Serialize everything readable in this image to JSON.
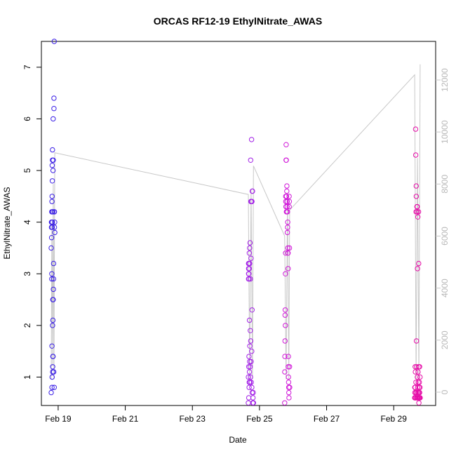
{
  "chart_data": {
    "type": "scatter",
    "title": "ORCAS RF12-19 EthylNitrate_AWAS",
    "xlabel": "Date",
    "ylabel": "EthylNitrate_AWAS",
    "xlim": [
      "2016-02-18 12:00",
      "2016-03-01 06:00"
    ],
    "ylim": [
      0.45,
      7.5
    ],
    "y2lim": [
      0,
      12600
    ],
    "x_ticks": [
      {
        "date": "2016-02-19",
        "label": "Feb 19"
      },
      {
        "date": "2016-02-21",
        "label": "Feb 21"
      },
      {
        "date": "2016-02-23",
        "label": "Feb 23"
      },
      {
        "date": "2016-02-25",
        "label": "Feb 25"
      },
      {
        "date": "2016-02-27",
        "label": "Feb 27"
      },
      {
        "date": "2016-02-29",
        "label": "Feb 29"
      }
    ],
    "y_ticks": [
      1,
      2,
      3,
      4,
      5,
      6,
      7
    ],
    "y2_ticks": [
      0,
      2000,
      4000,
      6000,
      8000,
      10000,
      12000
    ],
    "colors": {
      "flight_1": "#3a1fe6",
      "flight_2": "#a220e6",
      "flight_3": "#d018d8",
      "flight_4": "#e60ea8",
      "altitude_line": "#c8c8c8"
    },
    "series": [
      {
        "color_key": "flight_1",
        "x": [
          "2016-02-18 19:00",
          "2016-02-18 19:00",
          "2016-02-18 19:15",
          "2016-02-18 19:15",
          "2016-02-18 19:20",
          "2016-02-18 19:25",
          "2016-02-18 19:25",
          "2016-02-18 19:30",
          "2016-02-18 19:30",
          "2016-02-18 19:35",
          "2016-02-18 19:35",
          "2016-02-18 19:35",
          "2016-02-18 19:40",
          "2016-02-18 19:40",
          "2016-02-18 19:45",
          "2016-02-18 19:45",
          "2016-02-18 19:50",
          "2016-02-18 19:50",
          "2016-02-18 19:55",
          "2016-02-18 19:55",
          "2016-02-18 20:00",
          "2016-02-18 20:00",
          "2016-02-18 20:05",
          "2016-02-18 20:05",
          "2016-02-18 20:10",
          "2016-02-18 20:10",
          "2016-02-18 20:15",
          "2016-02-18 20:15",
          "2016-02-18 20:20",
          "2016-02-18 20:20",
          "2016-02-18 20:25",
          "2016-02-18 20:25",
          "2016-02-18 20:30",
          "2016-02-18 20:35",
          "2016-02-18 20:40",
          "2016-02-18 20:45",
          "2016-02-18 20:50",
          "2016-02-18 21:00",
          "2016-02-18 21:00",
          "2016-02-18 21:10",
          "2016-02-18 21:10",
          "2016-02-18 21:15",
          "2016-02-18 21:20",
          "2016-02-18 21:20",
          "2016-02-18 21:30",
          "2016-02-18 21:35"
        ],
        "y": [
          3.5,
          0.7,
          3.9,
          4.0,
          3.7,
          4.2,
          2.9,
          3.0,
          4.0,
          1.6,
          0.8,
          4.4,
          4.5,
          1.0,
          3.9,
          5.1,
          4.0,
          4.8,
          5.2,
          5.4,
          4.2,
          2.0,
          1.2,
          1.1,
          4.2,
          2.5,
          1.4,
          2.1,
          5.0,
          1.4,
          6.0,
          2.5,
          5.2,
          2.7,
          2.9,
          3.2,
          1.1,
          6.4,
          6.2,
          7.5,
          0.8,
          4.2,
          3.9,
          4.2,
          4.0,
          3.8
        ]
      },
      {
        "color_key": "flight_2",
        "x": [
          "2016-02-24 16:00",
          "2016-02-24 16:05",
          "2016-02-24 16:10",
          "2016-02-24 16:10",
          "2016-02-24 16:15",
          "2016-02-24 16:15",
          "2016-02-24 16:20",
          "2016-02-24 16:20",
          "2016-02-24 16:25",
          "2016-02-24 16:25",
          "2016-02-24 16:30",
          "2016-02-24 16:30",
          "2016-02-24 16:35",
          "2016-02-24 16:40",
          "2016-02-24 16:40",
          "2016-02-24 16:45",
          "2016-02-24 16:50",
          "2016-02-24 16:50",
          "2016-02-24 16:55",
          "2016-02-24 17:00",
          "2016-02-24 17:00",
          "2016-02-24 17:05",
          "2016-02-24 17:10",
          "2016-02-24 17:15",
          "2016-02-24 17:20",
          "2016-02-24 17:25",
          "2016-02-24 17:30",
          "2016-02-24 17:35",
          "2016-02-24 17:40",
          "2016-02-24 17:45",
          "2016-02-24 17:50",
          "2016-02-24 17:55",
          "2016-02-24 18:00",
          "2016-02-24 18:05",
          "2016-02-24 18:10",
          "2016-02-24 18:20",
          "2016-02-24 18:25",
          "2016-02-24 18:30",
          "2016-02-24 18:35",
          "2016-02-24 18:40",
          "2016-02-24 18:45",
          "2016-02-24 18:50",
          "2016-02-24 19:00",
          "2016-02-24 19:10",
          "2016-02-24 19:20",
          "2016-02-24 19:30",
          "2016-02-24 19:40"
        ],
        "y": [
          0.5,
          1.0,
          3.2,
          2.9,
          3.0,
          3.1,
          0.6,
          1.2,
          3.2,
          3.0,
          1.4,
          2.9,
          0.8,
          3.1,
          0.9,
          3.4,
          1.1,
          2.1,
          3.5,
          1.3,
          3.2,
          1.6,
          0.9,
          3.6,
          1.2,
          1.9,
          2.9,
          1.0,
          5.2,
          1.7,
          4.4,
          3.3,
          1.3,
          0.9,
          4.4,
          5.6,
          1.5,
          0.8,
          4.4,
          2.3,
          0.7,
          4.6,
          4.6,
          0.5,
          0.6,
          0.7,
          0.5
        ]
      },
      {
        "color_key": "flight_3",
        "x": [
          "2016-02-25 18:00",
          "2016-02-25 18:05",
          "2016-02-25 18:10",
          "2016-02-25 18:15",
          "2016-02-25 18:20",
          "2016-02-25 18:25",
          "2016-02-25 18:30",
          "2016-02-25 18:35",
          "2016-02-25 18:40",
          "2016-02-25 18:45",
          "2016-02-25 18:50",
          "2016-02-25 18:55",
          "2016-02-25 19:00",
          "2016-02-25 19:05",
          "2016-02-25 19:10",
          "2016-02-25 19:15",
          "2016-02-25 19:20",
          "2016-02-25 19:25",
          "2016-02-25 19:30",
          "2016-02-25 19:35",
          "2016-02-25 19:40",
          "2016-02-25 19:45",
          "2016-02-25 19:50",
          "2016-02-25 19:55",
          "2016-02-25 20:00",
          "2016-02-25 20:05",
          "2016-02-25 20:10",
          "2016-02-25 20:15",
          "2016-02-25 20:20",
          "2016-02-25 20:25",
          "2016-02-25 20:30",
          "2016-02-25 20:35",
          "2016-02-25 20:40",
          "2016-02-25 20:45",
          "2016-02-25 20:50",
          "2016-02-25 20:55",
          "2016-02-25 21:00",
          "2016-02-25 21:05",
          "2016-02-25 21:10",
          "2016-02-25 21:15",
          "2016-02-25 21:20",
          "2016-02-25 21:25",
          "2016-02-25 21:30",
          "2016-02-25 21:35"
        ],
        "y": [
          0.5,
          1.1,
          1.4,
          1.7,
          2.2,
          2.3,
          2.0,
          3.0,
          3.4,
          4.5,
          4.4,
          4.3,
          5.2,
          5.5,
          5.2,
          4.2,
          4.5,
          4.2,
          4.6,
          4.7,
          4.4,
          4.3,
          4.4,
          3.8,
          4.2,
          3.9,
          4.0,
          3.5,
          3.4,
          3.4,
          3.1,
          1.2,
          1.4,
          1.0,
          0.9,
          0.8,
          0.7,
          0.6,
          4.5,
          4.3,
          4.4,
          3.5,
          1.2,
          0.8
        ]
      },
      {
        "color_key": "flight_4",
        "x": [
          "2016-02-29 15:00",
          "2016-02-29 15:05",
          "2016-02-29 15:10",
          "2016-02-29 15:15",
          "2016-02-29 15:20",
          "2016-02-29 15:25",
          "2016-02-29 15:30",
          "2016-02-29 15:35",
          "2016-02-29 15:40",
          "2016-02-29 15:45",
          "2016-02-29 15:50",
          "2016-02-29 15:55",
          "2016-02-29 16:00",
          "2016-02-29 16:05",
          "2016-02-29 16:10",
          "2016-02-29 16:15",
          "2016-02-29 16:20",
          "2016-02-29 16:25",
          "2016-02-29 16:30",
          "2016-02-29 16:35",
          "2016-02-29 16:40",
          "2016-02-29 16:45",
          "2016-02-29 16:50",
          "2016-02-29 16:55",
          "2016-02-29 17:00",
          "2016-02-29 17:05",
          "2016-02-29 17:10",
          "2016-02-29 17:15",
          "2016-02-29 17:20",
          "2016-02-29 17:25",
          "2016-02-29 17:30",
          "2016-02-29 17:35",
          "2016-02-29 17:40",
          "2016-02-29 17:45",
          "2016-02-29 17:50",
          "2016-02-29 17:55",
          "2016-02-29 18:00",
          "2016-02-29 18:05",
          "2016-02-29 18:10",
          "2016-02-29 18:15",
          "2016-02-29 18:20",
          "2016-02-29 18:25",
          "2016-02-29 18:30",
          "2016-02-29 18:35",
          "2016-02-29 18:40",
          "2016-02-29 18:45",
          "2016-02-29 18:50",
          "2016-02-29 18:55"
        ],
        "y": [
          0.6,
          0.8,
          0.7,
          0.6,
          1.2,
          0.8,
          1.1,
          0.6,
          5.8,
          5.3,
          0.7,
          0.9,
          4.2,
          4.7,
          4.5,
          1.7,
          0.6,
          1.2,
          0.7,
          4.3,
          0.6,
          4.2,
          4.3,
          1.0,
          3.1,
          0.8,
          0.6,
          4.1,
          0.7,
          1.1,
          0.9,
          0.6,
          0.7,
          4.2,
          3.2,
          1.2,
          0.5,
          0.8,
          0.6,
          0.7,
          0.9,
          0.6,
          1.2,
          0.7,
          0.6,
          0.8,
          1.0,
          0.6
        ]
      }
    ],
    "altitude_line": {
      "axis": "right",
      "x": [
        "2016-02-18 19:00",
        "2016-02-18 19:30",
        "2016-02-18 20:00",
        "2016-02-18 20:30",
        "2016-02-18 21:00",
        "2016-02-18 21:35",
        "2016-02-24 16:00",
        "2016-02-24 17:00",
        "2016-02-24 18:00",
        "2016-02-24 19:00",
        "2016-02-24 19:40",
        "2016-02-25 18:00",
        "2016-02-25 19:00",
        "2016-02-25 20:00",
        "2016-02-25 21:00",
        "2016-02-25 21:35",
        "2016-02-29 15:00",
        "2016-02-29 16:00",
        "2016-02-29 17:00",
        "2016-02-29 18:00",
        "2016-02-29 18:55"
      ],
      "y": [
        500,
        6500,
        1000,
        8000,
        500,
        9200,
        7600,
        500,
        7800,
        500,
        8700,
        6000,
        500,
        7500,
        500,
        7000,
        12200,
        500,
        9000,
        500,
        12600
      ]
    }
  }
}
